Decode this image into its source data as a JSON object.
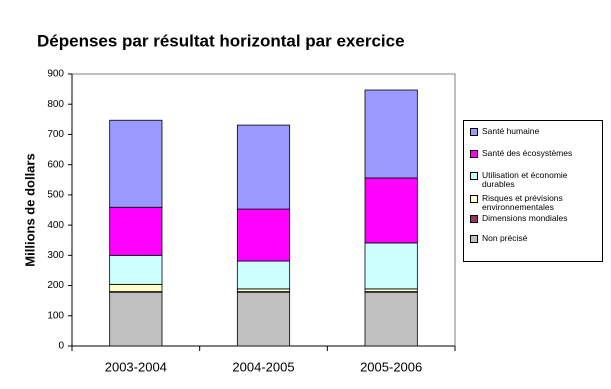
{
  "chart_data": {
    "type": "stacked_bar",
    "title": "Dépenses par résultat horizontal par exercice",
    "y_label": "Millions de dollars",
    "categories": [
      "2003-2004",
      "2004-2005",
      "2005-2006"
    ],
    "series": [
      {
        "name": "Santé humaine",
        "color": "#9999ff",
        "values": [
          288,
          278,
          291
        ]
      },
      {
        "name": "Santé des écosystèmes",
        "color": "#ff00ff",
        "values": [
          159,
          172,
          215
        ]
      },
      {
        "name": "Utilisation et économie durables",
        "color": "#ccffff",
        "values": [
          96,
          92,
          152
        ]
      },
      {
        "name": "Risques et prévisions environnementales",
        "color": "#ffffcc",
        "values": [
          24,
          9,
          9
        ]
      },
      {
        "name": "Dimensions mondiales",
        "color": "#993366",
        "values": [
          2,
          2,
          2
        ]
      },
      {
        "name": "Non précisé",
        "color": "#c0c0c0",
        "values": [
          178,
          178,
          178
        ]
      }
    ],
    "ylim": [
      0,
      900
    ],
    "yticks": [
      0,
      100,
      200,
      300,
      400,
      500,
      600,
      700,
      800,
      900
    ],
    "grid": false
  }
}
